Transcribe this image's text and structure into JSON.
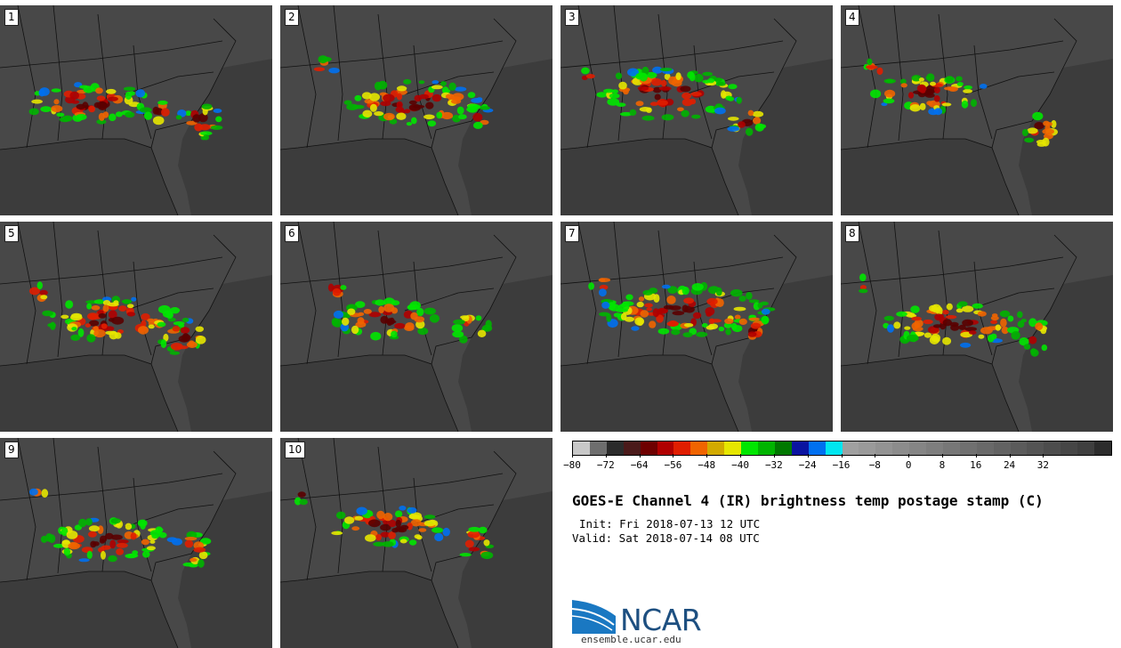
{
  "panels": [
    {
      "label": "1"
    },
    {
      "label": "2"
    },
    {
      "label": "3"
    },
    {
      "label": "4"
    },
    {
      "label": "5"
    },
    {
      "label": "6"
    },
    {
      "label": "7"
    },
    {
      "label": "8"
    },
    {
      "label": "9"
    },
    {
      "label": "10"
    }
  ],
  "colorbar": {
    "colors": [
      "#c8c8c8",
      "#6e6e6e",
      "#2b2b2b",
      "#4a1a1a",
      "#6e0000",
      "#b00000",
      "#e01e00",
      "#f06400",
      "#d2aa00",
      "#e6e600",
      "#00e600",
      "#00b400",
      "#007800",
      "#0a14a0",
      "#0070f0",
      "#00e6f0",
      "#a0a0a0",
      "#9a9a9a",
      "#939393",
      "#8c8c8c",
      "#858585",
      "#7e7e7e",
      "#777777",
      "#707070",
      "#696969",
      "#626262",
      "#5b5b5b",
      "#545454",
      "#4d4d4d",
      "#464646",
      "#3f3f3f",
      "#2c2c2c"
    ],
    "tick_labels": [
      "-80",
      "-72",
      "-64",
      "-56",
      "-48",
      "-40",
      "-32",
      "-24",
      "-16",
      "-8",
      "0",
      "8",
      "16",
      "24",
      "32"
    ],
    "min": -80,
    "max": 48,
    "step": 4
  },
  "title": "GOES-E Channel 4 (IR) brightness temp postage stamp (C)",
  "init": "Init: Fri 2018-07-13 12 UTC",
  "valid": "Valid: Sat 2018-07-14 08 UTC",
  "logo": {
    "text": "NCAR",
    "url": "ensemble.ucar.edu"
  },
  "colors": {
    "map_background": "#3c3c3c",
    "land": "#484848",
    "boundary": "#111111"
  }
}
